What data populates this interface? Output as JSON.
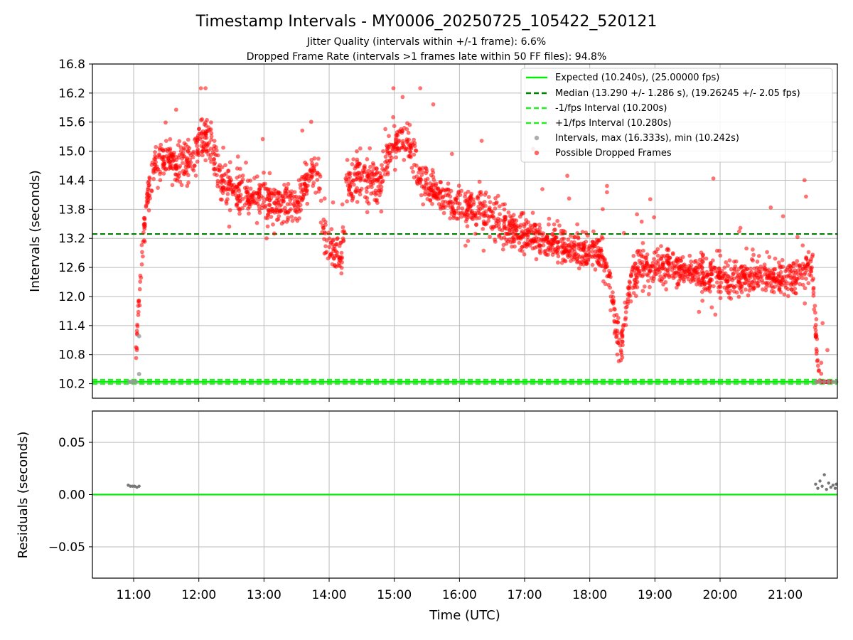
{
  "figure": {
    "title": "Timestamp Intervals - MY0006_20250725_105422_520121",
    "subtitle_1": "Jitter Quality (intervals within +/-1 frame): 6.6%",
    "subtitle_2": "Dropped Frame Rate (intervals >1 frames late within 50 FF files): 94.8%"
  },
  "colors": {
    "expected": "#00ee00",
    "median": "#008000",
    "fps_interval": "#22ee22",
    "intervals": "#999999",
    "dropped": "#ff0000",
    "residuals": "#777777",
    "grid": "#bbbbbb"
  },
  "chart_data": [
    {
      "type": "scatter",
      "panel": "top",
      "ylabel": "Intervals (seconds)",
      "xlim": [
        "10:22",
        "21:48"
      ],
      "ylim": [
        9.9,
        16.8
      ],
      "yticks": [
        "10.2",
        "10.8",
        "11.4",
        "12.0",
        "12.6",
        "13.2",
        "13.8",
        "14.4",
        "15.0",
        "15.6",
        "16.2",
        "16.8"
      ],
      "grid": true,
      "legend": {
        "position": "top-right",
        "entries": [
          "Expected (10.240s), (25.00000 fps)",
          "Median (13.290 +/- 1.286 s), (19.26245 +/- 2.05 fps)",
          "-1/fps Interval (10.200s)",
          "+1/fps Interval (10.280s)",
          "Intervals, max (16.333s), min (10.242s)",
          "Possible Dropped Frames"
        ]
      },
      "reference_lines": [
        {
          "name": "Expected",
          "y": 10.24,
          "style": "solid"
        },
        {
          "name": "Median",
          "y": 13.29,
          "style": "dashed"
        },
        {
          "name": "-1/fps Interval",
          "y": 10.2,
          "style": "dashed"
        },
        {
          "name": "+1/fps Interval",
          "y": 10.28,
          "style": "dashed"
        }
      ],
      "intervals_series": [
        {
          "x": "10:56",
          "y": 10.24
        },
        {
          "x": "10:58",
          "y": 10.24
        },
        {
          "x": "11:00",
          "y": 10.24
        },
        {
          "x": "11:02",
          "y": 10.24
        },
        {
          "x": "11:05",
          "y": 10.4
        },
        {
          "x": "11:05",
          "y": 11.18
        },
        {
          "x": "21:28",
          "y": 10.24
        },
        {
          "x": "21:32",
          "y": 10.24
        },
        {
          "x": "21:36",
          "y": 10.24
        },
        {
          "x": "21:40",
          "y": 10.24
        },
        {
          "x": "21:44",
          "y": 10.24
        },
        {
          "x": "21:47",
          "y": 10.24
        }
      ],
      "dropped_trend": [
        {
          "x": "11:02",
          "y": 10.8
        },
        {
          "x": "11:04",
          "y": 11.5
        },
        {
          "x": "11:06",
          "y": 12.2
        },
        {
          "x": "11:08",
          "y": 12.9
        },
        {
          "x": "11:10",
          "y": 13.5
        },
        {
          "x": "11:13",
          "y": 14.1
        },
        {
          "x": "11:17",
          "y": 14.5
        },
        {
          "x": "11:22",
          "y": 14.8
        },
        {
          "x": "11:30",
          "y": 14.9
        },
        {
          "x": "11:40",
          "y": 14.7
        },
        {
          "x": "11:50",
          "y": 14.8
        },
        {
          "x": "12:00",
          "y": 15.1
        },
        {
          "x": "12:10",
          "y": 15.3
        },
        {
          "x": "12:15",
          "y": 14.7
        },
        {
          "x": "12:20",
          "y": 14.3
        },
        {
          "x": "12:30",
          "y": 14.2
        },
        {
          "x": "12:45",
          "y": 14.1
        },
        {
          "x": "13:00",
          "y": 14.0
        },
        {
          "x": "13:15",
          "y": 13.9
        },
        {
          "x": "13:30",
          "y": 13.9
        },
        {
          "x": "13:40",
          "y": 14.4
        },
        {
          "x": "13:50",
          "y": 14.6
        },
        {
          "x": "13:55",
          "y": 13.2
        },
        {
          "x": "14:05",
          "y": 12.9
        },
        {
          "x": "14:12",
          "y": 12.8
        },
        {
          "x": "14:15",
          "y": 14.3
        },
        {
          "x": "14:30",
          "y": 14.5
        },
        {
          "x": "14:45",
          "y": 14.3
        },
        {
          "x": "14:55",
          "y": 15.0
        },
        {
          "x": "15:05",
          "y": 15.3
        },
        {
          "x": "15:15",
          "y": 15.0
        },
        {
          "x": "15:25",
          "y": 14.4
        },
        {
          "x": "15:40",
          "y": 14.2
        },
        {
          "x": "15:55",
          "y": 13.9
        },
        {
          "x": "16:10",
          "y": 13.8
        },
        {
          "x": "16:30",
          "y": 13.6
        },
        {
          "x": "16:50",
          "y": 13.4
        },
        {
          "x": "17:10",
          "y": 13.2
        },
        {
          "x": "17:30",
          "y": 13.1
        },
        {
          "x": "17:50",
          "y": 12.9
        },
        {
          "x": "18:10",
          "y": 12.9
        },
        {
          "x": "18:20",
          "y": 12.2
        },
        {
          "x": "18:25",
          "y": 11.2
        },
        {
          "x": "18:30",
          "y": 11.0
        },
        {
          "x": "18:35",
          "y": 12.1
        },
        {
          "x": "18:45",
          "y": 12.6
        },
        {
          "x": "19:00",
          "y": 12.6
        },
        {
          "x": "19:20",
          "y": 12.6
        },
        {
          "x": "19:40",
          "y": 12.5
        },
        {
          "x": "20:00",
          "y": 12.4
        },
        {
          "x": "20:20",
          "y": 12.4
        },
        {
          "x": "20:40",
          "y": 12.4
        },
        {
          "x": "21:00",
          "y": 12.3
        },
        {
          "x": "21:15",
          "y": 12.5
        },
        {
          "x": "21:25",
          "y": 12.6
        },
        {
          "x": "21:28",
          "y": 11.5
        },
        {
          "x": "21:30",
          "y": 10.5
        },
        {
          "x": "21:32",
          "y": 10.24
        },
        {
          "x": "21:38",
          "y": 10.24
        },
        {
          "x": "21:42",
          "y": 10.24
        }
      ]
    },
    {
      "type": "scatter",
      "panel": "bottom",
      "xlabel": "Time (UTC)",
      "ylabel": "Residuals (seconds)",
      "xlim": [
        "10:22",
        "21:48"
      ],
      "ylim": [
        -0.08,
        0.08
      ],
      "xticks": [
        "11:00",
        "12:00",
        "13:00",
        "14:00",
        "15:00",
        "16:00",
        "17:00",
        "18:00",
        "19:00",
        "20:00",
        "21:00"
      ],
      "yticks": [
        "0.05",
        "0.00",
        "−0.05"
      ],
      "ytick_values": [
        0.05,
        0.0,
        -0.05
      ],
      "grid": true,
      "reference_line": {
        "y": 0.0
      },
      "residuals": [
        {
          "x": "10:55",
          "y": 0.009
        },
        {
          "x": "10:57",
          "y": 0.008
        },
        {
          "x": "10:59",
          "y": 0.008
        },
        {
          "x": "11:01",
          "y": 0.008
        },
        {
          "x": "11:03",
          "y": 0.007
        },
        {
          "x": "11:05",
          "y": 0.008
        },
        {
          "x": "21:28",
          "y": 0.01
        },
        {
          "x": "21:30",
          "y": 0.006
        },
        {
          "x": "21:32",
          "y": 0.013
        },
        {
          "x": "21:34",
          "y": 0.008
        },
        {
          "x": "21:36",
          "y": 0.019
        },
        {
          "x": "21:38",
          "y": 0.005
        },
        {
          "x": "21:40",
          "y": 0.011
        },
        {
          "x": "21:42",
          "y": 0.007
        },
        {
          "x": "21:44",
          "y": 0.009
        },
        {
          "x": "21:46",
          "y": 0.006
        },
        {
          "x": "21:47",
          "y": 0.01
        }
      ]
    }
  ]
}
